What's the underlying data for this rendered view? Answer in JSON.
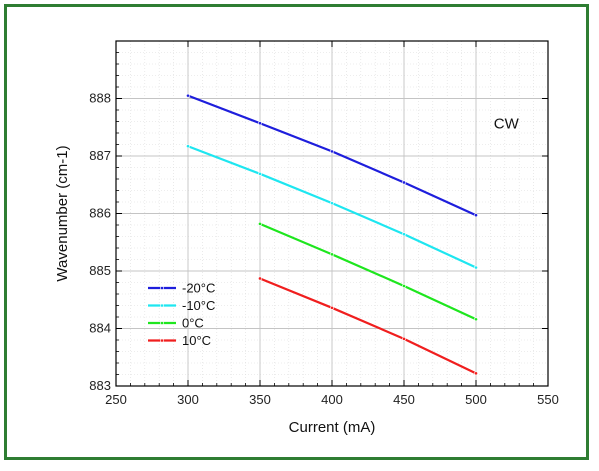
{
  "chart_data": {
    "type": "line",
    "title": "",
    "xlabel": "Current (mA)",
    "ylabel": "Wavenumber (cm-1)",
    "xlim": [
      250,
      550
    ],
    "ylim": [
      883,
      889
    ],
    "x_ticks": [
      250,
      300,
      350,
      400,
      450,
      500,
      550
    ],
    "y_ticks": [
      883,
      884,
      885,
      886,
      887,
      888
    ],
    "grid": true,
    "legend_position": "bottom-left",
    "annotation": "CW",
    "series": [
      {
        "name": "-20°C",
        "color": "#1e1edc",
        "x": [
          300,
          350,
          400,
          450,
          500
        ],
        "y": [
          888.05,
          887.57,
          887.08,
          886.54,
          885.97
        ]
      },
      {
        "name": "-10°C",
        "color": "#1ee6f0",
        "x": [
          300,
          350,
          400,
          450,
          500
        ],
        "y": [
          887.17,
          886.69,
          886.18,
          885.64,
          885.06
        ]
      },
      {
        "name": "0°C",
        "color": "#1ee61e",
        "x": [
          350,
          400,
          450,
          500
        ],
        "y": [
          885.82,
          885.29,
          884.74,
          884.16
        ]
      },
      {
        "name": "10°C",
        "color": "#f01e1e",
        "x": [
          350,
          400,
          450,
          500
        ],
        "y": [
          884.87,
          884.36,
          883.82,
          883.22
        ]
      }
    ]
  }
}
